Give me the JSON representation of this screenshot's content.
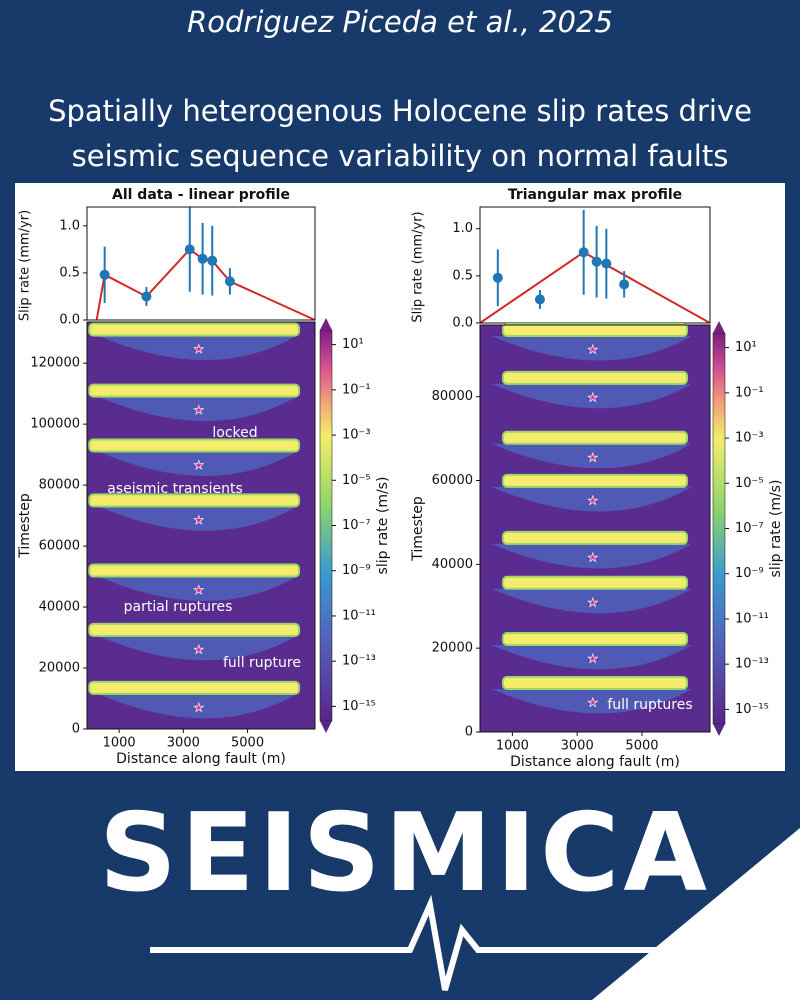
{
  "header": {
    "authors": "Rodriguez Piceda et al., 2025",
    "title_lines": [
      "Spatially heterogenous Holocene slip rates drive",
      "seismic sequence variability on normal faults"
    ],
    "logo": "SEISMICA"
  },
  "chart_data": [
    {
      "type": "scatter",
      "title": "All data - linear profile",
      "y_label": "Slip rate (mm/yr)",
      "xlim": [
        0,
        7100
      ],
      "ylim": [
        0,
        1.2
      ],
      "yticks": [
        {
          "value": 0,
          "label": "0.0"
        },
        {
          "value": 0.5,
          "label": "0.5"
        },
        {
          "value": 1,
          "label": "1.0"
        }
      ],
      "points": {
        "color": "#1f77b4",
        "x": [
          550,
          1850,
          3200,
          3600,
          3900,
          4450
        ],
        "values": [
          0.48,
          0.25,
          0.75,
          0.65,
          0.63,
          0.41
        ],
        "errors": [
          0.3,
          0.1,
          0.45,
          0.38,
          0.37,
          0.14
        ]
      },
      "profile": {
        "color": "#d62728",
        "x": [
          300,
          550,
          1850,
          3200,
          3600,
          3900,
          4450,
          7100
        ],
        "values": [
          0,
          0.48,
          0.25,
          0.75,
          0.65,
          0.63,
          0.41,
          0
        ]
      }
    },
    {
      "type": "scatter",
      "title": "Triangular max profile",
      "y_label": "Slip rate (mm/yr)",
      "xlim": [
        0,
        7100
      ],
      "ylim": [
        0,
        1.23
      ],
      "yticks": [
        {
          "value": 0,
          "label": "0.0"
        },
        {
          "value": 0.5,
          "label": "0.5"
        },
        {
          "value": 1,
          "label": "1.0"
        }
      ],
      "points": {
        "color": "#1f77b4",
        "x": [
          550,
          1850,
          3200,
          3600,
          3900,
          4450
        ],
        "values": [
          0.48,
          0.25,
          0.75,
          0.65,
          0.63,
          0.41
        ],
        "errors": [
          0.3,
          0.1,
          0.45,
          0.38,
          0.37,
          0.14
        ]
      },
      "profile": {
        "color": "#d62728",
        "x": [
          0,
          3200,
          7100
        ],
        "values": [
          0,
          0.75,
          0
        ]
      }
    },
    {
      "type": "heatmap",
      "x_label": "Distance along fault (m)",
      "y_label": "Timestep",
      "xlim": [
        0,
        7100
      ],
      "ylim": [
        0,
        133500
      ],
      "xticks": [
        1000,
        3000,
        5000
      ],
      "yticks": [
        0,
        20000,
        40000,
        60000,
        80000,
        100000,
        120000
      ],
      "events": [
        13500,
        32500,
        52000,
        75000,
        93000,
        111000,
        131000
      ],
      "annotations": [
        "locked",
        "aseismic transients",
        "partial ruptures",
        "full rupture"
      ],
      "colorbar": {
        "label": "slip rate (m/s)",
        "log": true,
        "lim": [
          1e-16,
          100
        ],
        "ticks": [
          {
            "value": 10,
            "label": "10¹"
          },
          {
            "value": 0.1,
            "label": "10⁻¹"
          },
          {
            "value": 0.001,
            "label": "10⁻³"
          },
          {
            "value": 1e-05,
            "label": "10⁻⁵"
          },
          {
            "value": 1e-07,
            "label": "10⁻⁷"
          },
          {
            "value": 1e-09,
            "label": "10⁻⁹"
          },
          {
            "value": 1e-11,
            "label": "10⁻¹¹"
          },
          {
            "value": 1e-13,
            "label": "10⁻¹³"
          },
          {
            "value": 1e-15,
            "label": "10⁻¹⁵"
          }
        ]
      }
    },
    {
      "type": "heatmap",
      "x_label": "Distance along fault (m)",
      "y_label": "Timestep",
      "xlim": [
        0,
        7100
      ],
      "ylim": [
        0,
        97100
      ],
      "xticks": [
        1000,
        3000,
        5000
      ],
      "yticks": [
        0,
        20000,
        40000,
        60000,
        80000
      ],
      "events": [
        11700,
        22200,
        35600,
        46300,
        59900,
        70200,
        84500,
        95900
      ],
      "annotations": [
        "full ruptures"
      ],
      "colorbar": {
        "label": "slip rate (m/s)",
        "log": true,
        "lim": [
          1e-16,
          100
        ],
        "ticks": [
          {
            "value": 10,
            "label": "10¹"
          },
          {
            "value": 0.1,
            "label": "10⁻¹"
          },
          {
            "value": 0.001,
            "label": "10⁻³"
          },
          {
            "value": 1e-05,
            "label": "10⁻⁵"
          },
          {
            "value": 1e-07,
            "label": "10⁻⁷"
          },
          {
            "value": 1e-09,
            "label": "10⁻⁹"
          },
          {
            "value": 1e-11,
            "label": "10⁻¹¹"
          },
          {
            "value": 1e-13,
            "label": "10⁻¹³"
          },
          {
            "value": 1e-15,
            "label": "10⁻¹⁵"
          }
        ]
      }
    }
  ]
}
